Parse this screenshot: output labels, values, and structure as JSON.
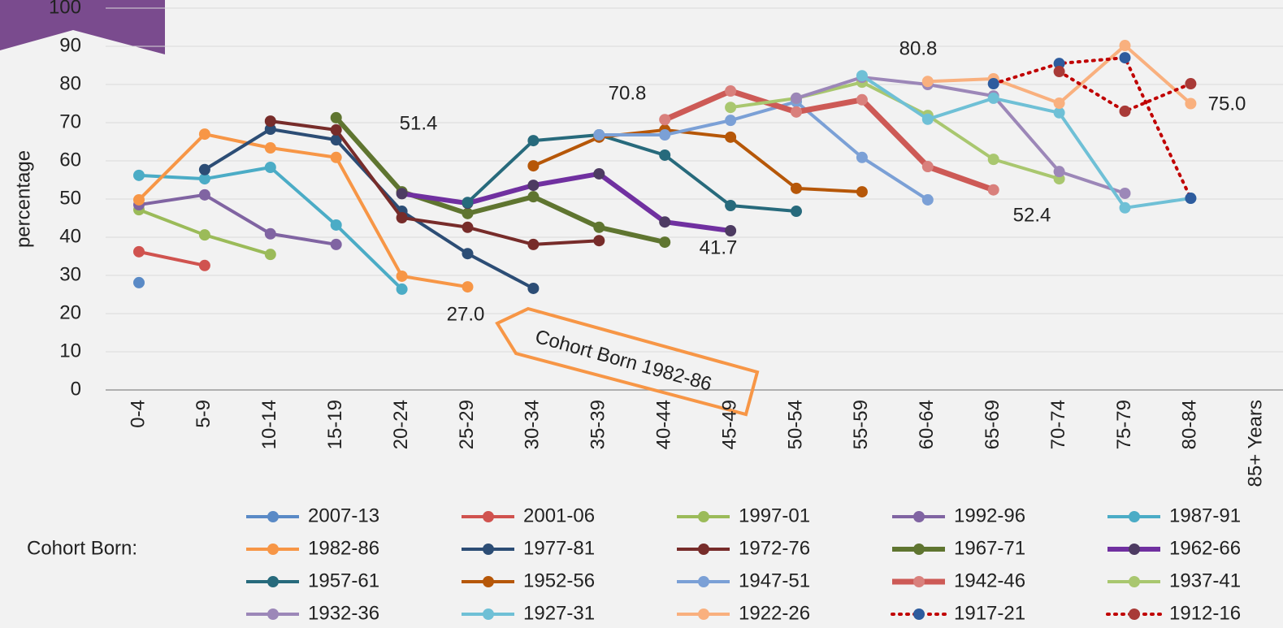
{
  "chart_data": {
    "type": "line",
    "y_label": "percentage",
    "legend_title": "Cohort Born:",
    "categories": [
      "0-4",
      "5-9",
      "10-14",
      "15-19",
      "20-24",
      "25-29",
      "30-34",
      "35-39",
      "40-44",
      "45-49",
      "50-54",
      "55-59",
      "60-64",
      "65-69",
      "70-74",
      "75-79",
      "80-84",
      "85+ Years"
    ],
    "ylim": [
      0,
      100
    ],
    "yticks": [
      0,
      10,
      20,
      30,
      40,
      50,
      60,
      70,
      80,
      90,
      100
    ],
    "grid": true,
    "series": [
      {
        "name": "2007-13",
        "color": "#5a8ac6",
        "values": [
          28.1,
          null,
          null,
          null,
          null,
          null,
          null,
          null,
          null,
          null,
          null,
          null,
          null,
          null,
          null,
          null,
          null,
          null
        ]
      },
      {
        "name": "2001-06",
        "color": "#d0534f",
        "values": [
          36.2,
          32.6,
          null,
          null,
          null,
          null,
          null,
          null,
          null,
          null,
          null,
          null,
          null,
          null,
          null,
          null,
          null,
          null
        ]
      },
      {
        "name": "1997-01",
        "color": "#9bbb59",
        "values": [
          47.2,
          40.6,
          35.5,
          null,
          null,
          null,
          null,
          null,
          null,
          null,
          null,
          null,
          null,
          null,
          null,
          null,
          null,
          null
        ]
      },
      {
        "name": "1992-96",
        "color": "#8064a2",
        "values": [
          48.5,
          51.1,
          40.9,
          38.1,
          null,
          null,
          null,
          null,
          null,
          null,
          null,
          null,
          null,
          null,
          null,
          null,
          null,
          null
        ]
      },
      {
        "name": "1987-91",
        "color": "#4bacc6",
        "values": [
          56.2,
          55.3,
          58.3,
          43.2,
          26.4,
          null,
          null,
          null,
          null,
          null,
          null,
          null,
          null,
          null,
          null,
          null,
          null,
          null
        ]
      },
      {
        "name": "1982-86",
        "color": "#f79646",
        "values": [
          49.8,
          67.0,
          63.4,
          60.9,
          29.8,
          27.0,
          null,
          null,
          null,
          null,
          null,
          null,
          null,
          null,
          null,
          null,
          null,
          null
        ]
      },
      {
        "name": "1977-81",
        "color": "#2c4d75",
        "values": [
          null,
          57.7,
          68.3,
          65.5,
          46.8,
          35.7,
          26.6,
          null,
          null,
          null,
          null,
          null,
          null,
          null,
          null,
          null,
          null,
          null
        ]
      },
      {
        "name": "1972-76",
        "color": "#772c2a",
        "values": [
          null,
          null,
          70.4,
          68.1,
          45.1,
          42.6,
          38.1,
          39.1,
          null,
          null,
          null,
          null,
          null,
          null,
          null,
          null,
          null,
          null
        ]
      },
      {
        "name": "1967-71",
        "color": "#5f7530",
        "width": 6,
        "values": [
          null,
          null,
          null,
          71.3,
          51.9,
          46.2,
          50.6,
          42.6,
          38.7,
          null,
          null,
          null,
          null,
          null,
          null,
          null,
          null,
          null
        ]
      },
      {
        "name": "1962-66",
        "color": "#7030a0",
        "marker_color": "#4d3b62",
        "width": 6,
        "values": [
          null,
          null,
          null,
          null,
          51.4,
          48.9,
          53.6,
          56.6,
          44.0,
          41.7,
          null,
          null,
          null,
          null,
          null,
          null,
          null,
          null
        ]
      },
      {
        "name": "1957-61",
        "color": "#276a7c",
        "values": [
          null,
          null,
          null,
          null,
          null,
          49.1,
          65.3,
          66.8,
          61.5,
          48.3,
          46.8,
          null,
          null,
          null,
          null,
          null,
          null,
          null
        ]
      },
      {
        "name": "1952-56",
        "color": "#b65708",
        "values": [
          null,
          null,
          null,
          null,
          null,
          null,
          58.7,
          66.2,
          68.1,
          66.2,
          52.8,
          51.9,
          null,
          null,
          null,
          null,
          null,
          null
        ]
      },
      {
        "name": "1947-51",
        "color": "#7ba0d6",
        "values": [
          null,
          null,
          null,
          null,
          null,
          null,
          null,
          66.8,
          66.8,
          70.6,
          75.5,
          60.9,
          49.8,
          null,
          null,
          null,
          null,
          null
        ]
      },
      {
        "name": "1942-46",
        "color": "#cd5a56",
        "marker_color": "#d9807c",
        "width": 7,
        "values": [
          null,
          null,
          null,
          null,
          null,
          null,
          null,
          null,
          70.8,
          78.3,
          72.8,
          76.0,
          58.5,
          52.4,
          null,
          null,
          null,
          null
        ]
      },
      {
        "name": "1937-41",
        "color": "#a9c76f",
        "values": [
          null,
          null,
          null,
          null,
          null,
          null,
          null,
          null,
          null,
          74.0,
          76.4,
          80.6,
          71.9,
          60.4,
          55.3,
          null,
          null,
          null
        ]
      },
      {
        "name": "1932-36",
        "color": "#9c87b8",
        "values": [
          null,
          null,
          null,
          null,
          null,
          null,
          null,
          null,
          null,
          null,
          76.4,
          81.9,
          80.0,
          77.0,
          57.2,
          51.5,
          null,
          null
        ]
      },
      {
        "name": "1927-31",
        "color": "#6fc0d6",
        "values": [
          null,
          null,
          null,
          null,
          null,
          null,
          null,
          null,
          null,
          null,
          null,
          82.3,
          70.9,
          76.4,
          72.6,
          47.7,
          50.2,
          null
        ]
      },
      {
        "name": "1922-26",
        "color": "#f9b07e",
        "values": [
          null,
          null,
          null,
          null,
          null,
          null,
          null,
          null,
          null,
          null,
          null,
          null,
          80.8,
          81.5,
          75.1,
          90.2,
          75.0,
          null
        ]
      },
      {
        "name": "1917-21",
        "color": "#c00000",
        "marker_color": "#2e5c9e",
        "dash": "dotted",
        "values": [
          null,
          null,
          null,
          null,
          null,
          null,
          null,
          null,
          null,
          null,
          null,
          null,
          null,
          80.2,
          85.5,
          87.0,
          50.2,
          null
        ]
      },
      {
        "name": "1912-16",
        "color": "#c00000",
        "marker_color": "#a83a37",
        "dash": "dotted",
        "values": [
          null,
          null,
          null,
          null,
          null,
          null,
          null,
          null,
          null,
          null,
          null,
          null,
          null,
          null,
          83.4,
          73.0,
          80.2,
          null
        ]
      }
    ],
    "annotations": [
      "51.4",
      "70.8",
      "80.8",
      "27.0",
      "41.7",
      "52.4",
      "75.0"
    ],
    "callout": "Cohort Born 1982-86"
  }
}
